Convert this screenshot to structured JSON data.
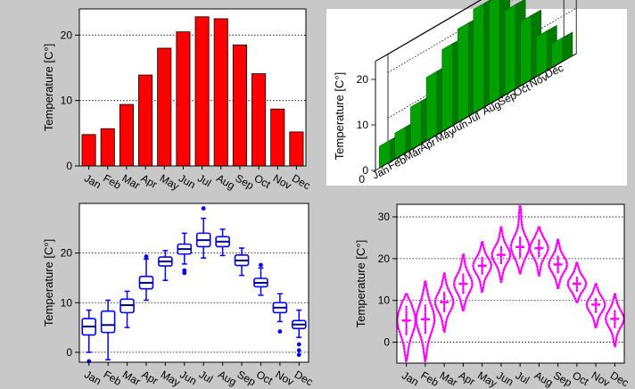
{
  "chart_data": [
    {
      "type": "bar",
      "title": "",
      "xlabel": "",
      "ylabel": "Temperature [C°]",
      "categories": [
        "Jan",
        "Feb",
        "Mar",
        "Apr",
        "May",
        "Jun",
        "Jul",
        "Aug",
        "Sep",
        "Oct",
        "Nov",
        "Dec"
      ],
      "values": [
        4.8,
        5.7,
        9.4,
        13.9,
        18.0,
        20.5,
        22.8,
        22.5,
        18.5,
        14.1,
        8.7,
        5.2
      ],
      "ylim": [
        0,
        24
      ],
      "yticks": [
        0,
        10,
        20
      ],
      "grid": "horizontal dotted",
      "color": "#ff0000"
    },
    {
      "type": "bar",
      "variant": "3d",
      "title": "",
      "xlabel": "",
      "ylabel": "Temperature [C°]",
      "categories": [
        "Jan",
        "Feb",
        "Mar",
        "Apr",
        "May",
        "Jun",
        "Jul",
        "Aug",
        "Sep",
        "Oct",
        "Nov",
        "Dec"
      ],
      "values": [
        4.8,
        5.7,
        9.4,
        13.9,
        18.0,
        20.5,
        22.8,
        22.5,
        18.5,
        14.1,
        8.7,
        5.2
      ],
      "ylim": [
        0,
        24
      ],
      "yticks": [
        0,
        10,
        20
      ],
      "depth_label": "0",
      "color": "#00a000"
    },
    {
      "type": "box",
      "title": "",
      "xlabel": "",
      "ylabel": "Temperature [C°]",
      "categories": [
        "Jan",
        "Feb",
        "Mar",
        "Apr",
        "May",
        "Jun",
        "Jul",
        "Aug",
        "Sep",
        "Oct",
        "Nov",
        "Dec"
      ],
      "boxes": [
        {
          "min": 0.0,
          "q1": 3.5,
          "median": 5.2,
          "q3": 6.8,
          "max": 8.5,
          "outliers": [
            -1.8
          ]
        },
        {
          "min": -1.5,
          "q1": 4.0,
          "median": 5.5,
          "q3": 8.3,
          "max": 10.5,
          "outliers": []
        },
        {
          "min": 5.0,
          "q1": 8.0,
          "median": 9.5,
          "q3": 10.7,
          "max": 12.3,
          "outliers": []
        },
        {
          "min": 10.5,
          "q1": 12.8,
          "median": 14.0,
          "q3": 15.3,
          "max": 18.8,
          "outliers": [
            19.3
          ]
        },
        {
          "min": 14.5,
          "q1": 17.4,
          "median": 18.3,
          "q3": 19.2,
          "max": 20.5,
          "outliers": []
        },
        {
          "min": 17.8,
          "q1": 19.8,
          "median": 20.8,
          "q3": 21.8,
          "max": 24.0,
          "outliers": [
            16.0,
            16.5
          ]
        },
        {
          "min": 19.0,
          "q1": 21.3,
          "median": 22.6,
          "q3": 24.0,
          "max": 27.0,
          "outliers": [
            29.0
          ]
        },
        {
          "min": 19.5,
          "q1": 21.3,
          "median": 22.3,
          "q3": 23.3,
          "max": 24.8,
          "outliers": []
        },
        {
          "min": 15.5,
          "q1": 17.5,
          "median": 18.5,
          "q3": 19.6,
          "max": 21.0,
          "outliers": []
        },
        {
          "min": 11.5,
          "q1": 13.2,
          "median": 14.0,
          "q3": 14.9,
          "max": 17.0,
          "outliers": [
            17.6
          ]
        },
        {
          "min": 6.2,
          "q1": 8.0,
          "median": 9.0,
          "q3": 10.0,
          "max": 11.8,
          "outliers": [
            4.2
          ]
        },
        {
          "min": 3.0,
          "q1": 4.8,
          "median": 5.6,
          "q3": 6.4,
          "max": 8.5,
          "outliers": [
            1.6,
            0.4,
            -0.5
          ]
        }
      ],
      "ylim": [
        -2,
        30
      ],
      "yticks": [
        0,
        10,
        20
      ],
      "grid": "horizontal dotted",
      "color": "#0000ff"
    },
    {
      "type": "violin",
      "title": "",
      "xlabel": "",
      "ylabel": "Temperature [C°]",
      "categories": [
        "Jan",
        "Feb",
        "Mar",
        "Apr",
        "May",
        "Jun",
        "Jul",
        "Aug",
        "Sep",
        "Oct",
        "Nov",
        "Dec"
      ],
      "violins": [
        {
          "min": -4.5,
          "max": 11.5,
          "mean": 5.2,
          "sd": 3.3
        },
        {
          "min": -4.5,
          "max": 14.5,
          "mean": 5.5,
          "sd": 3.3
        },
        {
          "min": 2.5,
          "max": 16.5,
          "mean": 9.6,
          "sd": 2.2
        },
        {
          "min": 7.5,
          "max": 21.0,
          "mean": 14.0,
          "sd": 2.2
        },
        {
          "min": 12.0,
          "max": 24.0,
          "mean": 18.3,
          "sd": 1.9
        },
        {
          "min": 14.5,
          "max": 27.5,
          "mean": 20.9,
          "sd": 2.0
        },
        {
          "min": 16.5,
          "max": 32.5,
          "mean": 22.8,
          "sd": 2.4
        },
        {
          "min": 16.0,
          "max": 27.5,
          "mean": 22.5,
          "sd": 2.0
        },
        {
          "min": 13.0,
          "max": 24.5,
          "mean": 18.6,
          "sd": 1.9
        },
        {
          "min": 9.5,
          "max": 19.0,
          "mean": 14.0,
          "sd": 1.7
        },
        {
          "min": 3.5,
          "max": 14.0,
          "mean": 9.0,
          "sd": 1.8
        },
        {
          "min": -1.0,
          "max": 11.5,
          "mean": 5.6,
          "sd": 2.0
        }
      ],
      "ylim": [
        -5,
        33
      ],
      "yticks": [
        0,
        10,
        20,
        30
      ],
      "grid": "horizontal dotted",
      "color": "#ff00ff"
    }
  ]
}
